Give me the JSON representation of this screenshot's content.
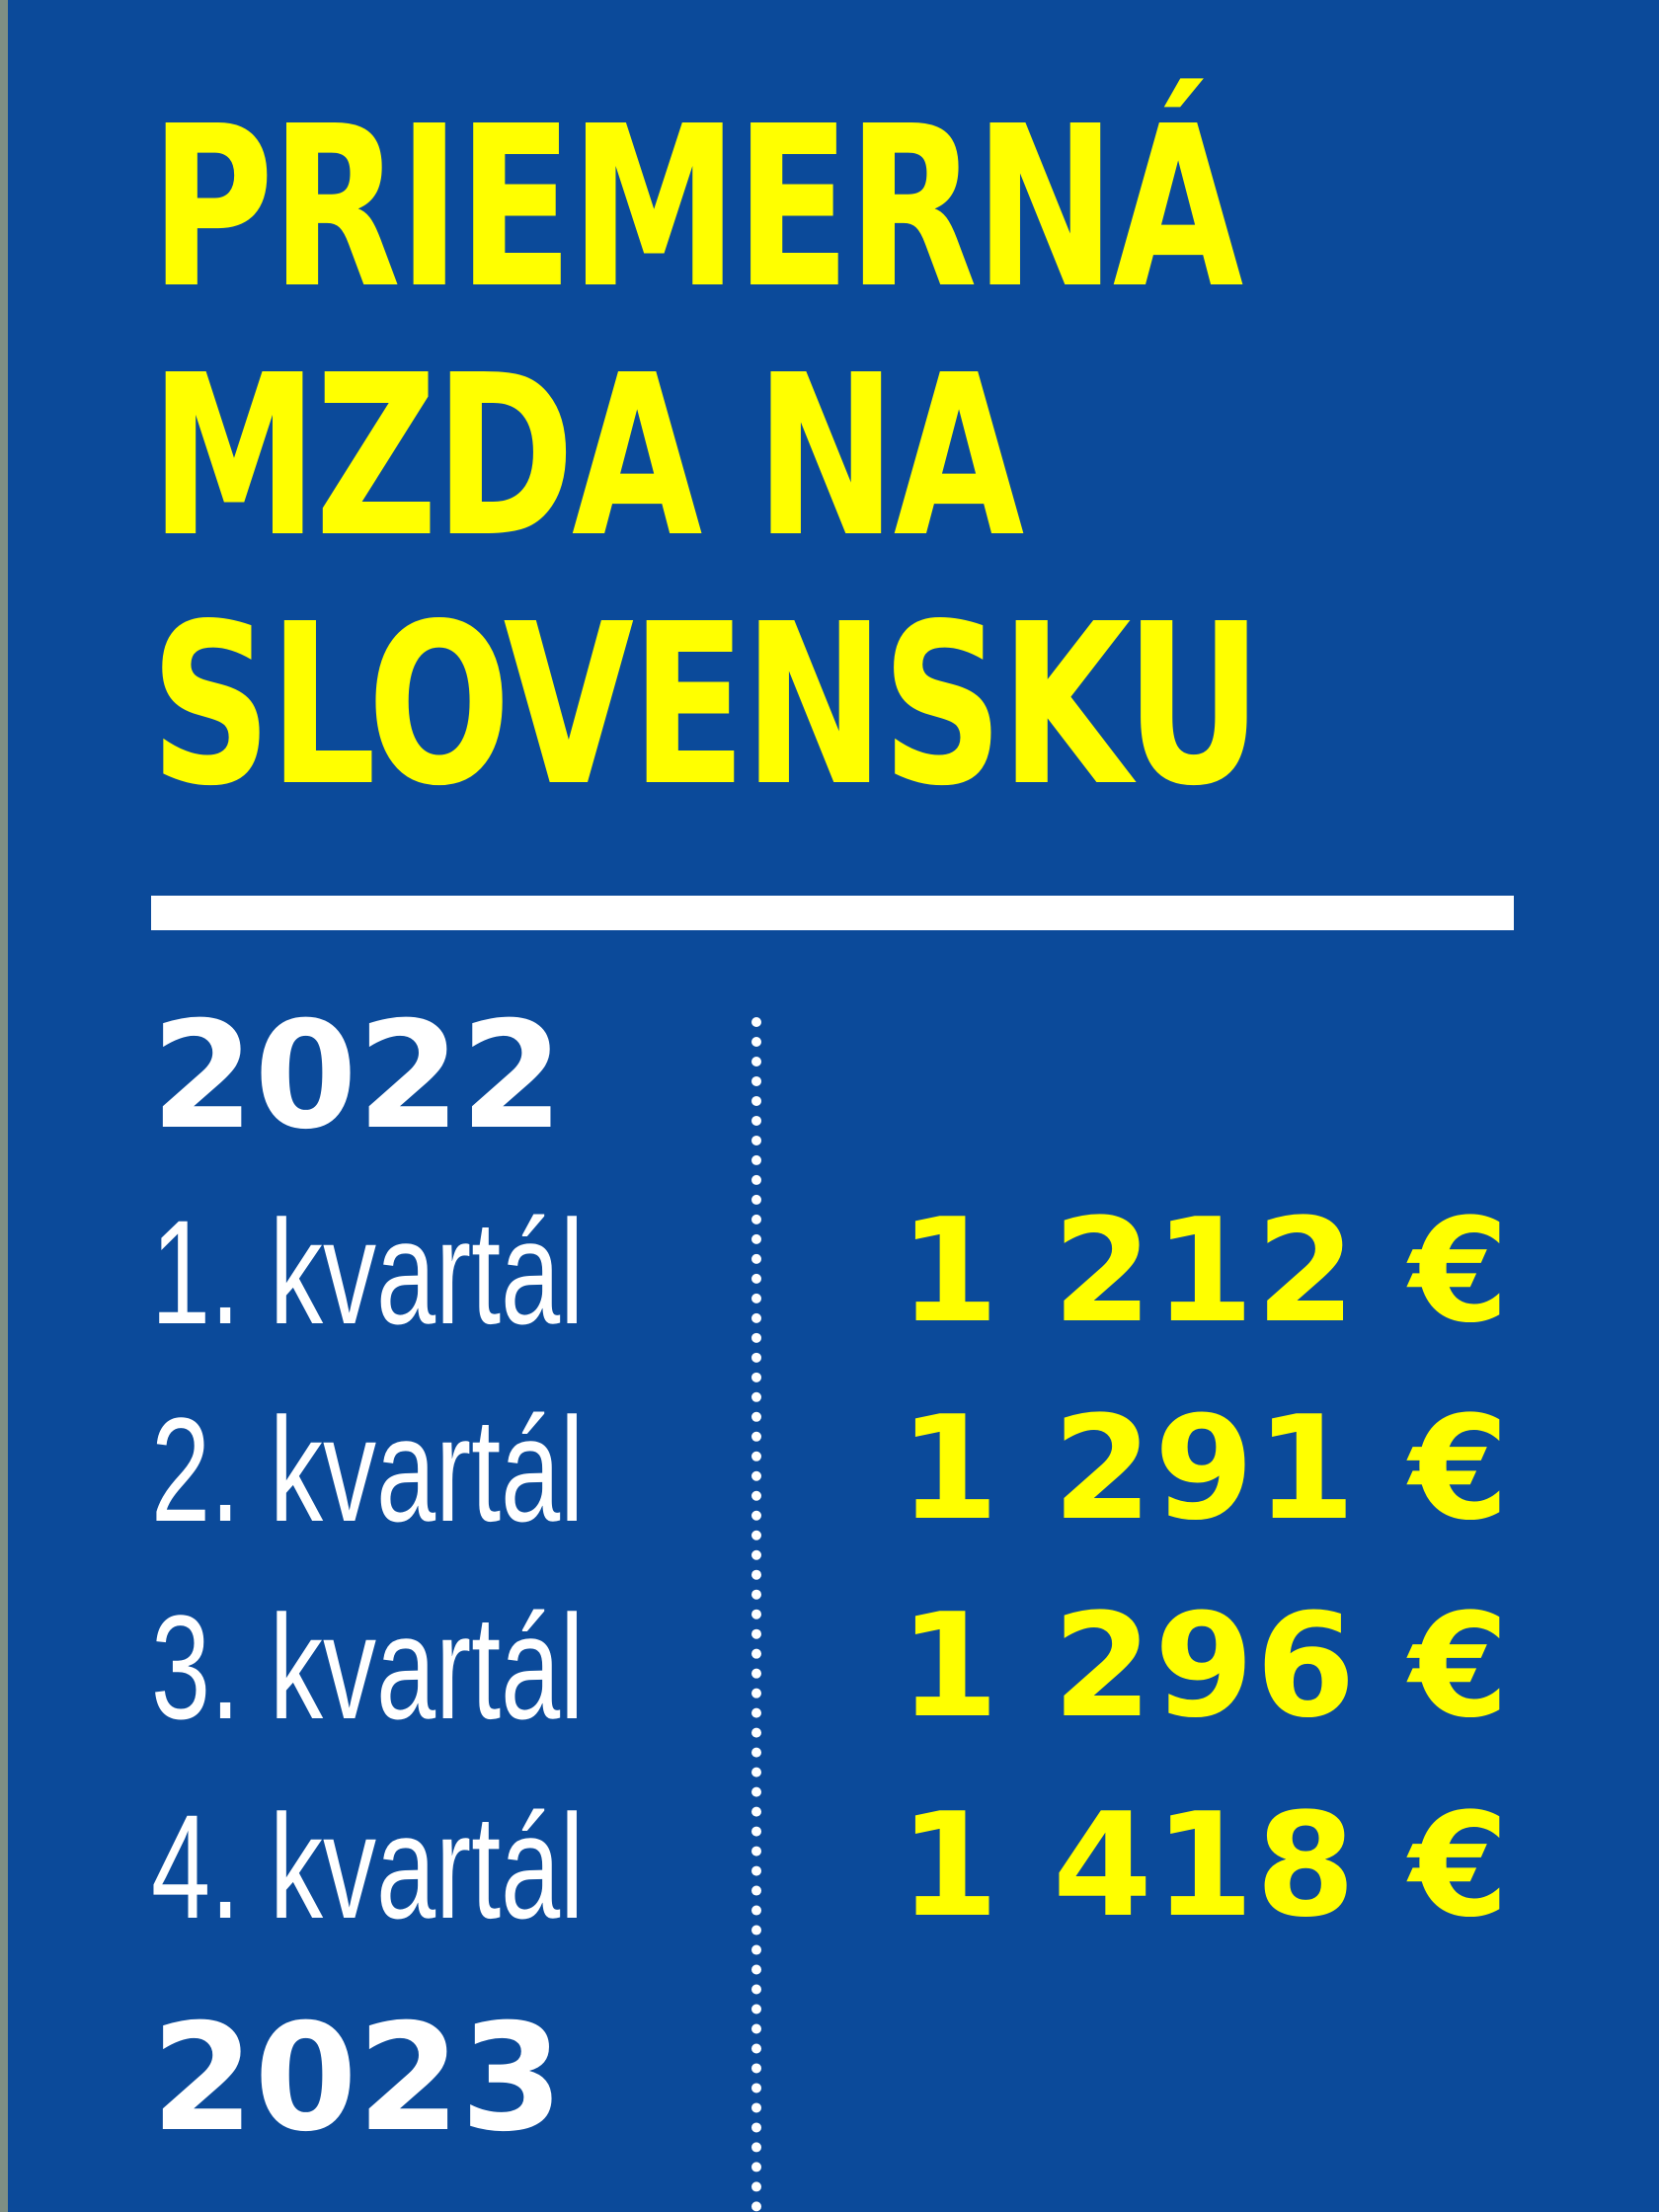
{
  "title_lines": [
    "PRIEMERNÁ",
    "MZDA NA",
    "SLOVENSKU"
  ],
  "years": [
    {
      "year": "2022",
      "quarters": [
        {
          "label": "1. kvartál",
          "value": "1 212 €"
        },
        {
          "label": "2. kvartál",
          "value": "1 291 €"
        },
        {
          "label": "3. kvartál",
          "value": "1 296 €"
        },
        {
          "label": "4. kvartál",
          "value": "1 418 €"
        }
      ]
    },
    {
      "year": "2023"
    }
  ],
  "colors": {
    "background": "#0B4A9A",
    "title": "#FFFF00",
    "text": "#FFFFFF",
    "value": "#FFFF00"
  }
}
